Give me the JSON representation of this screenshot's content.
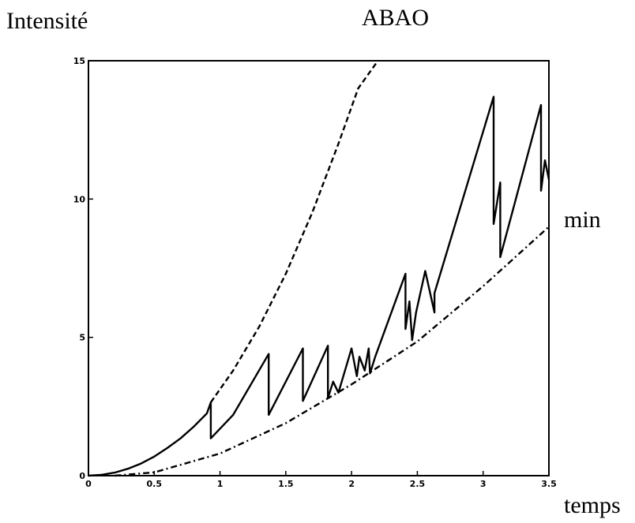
{
  "chart_data": {
    "type": "line",
    "title": "ABAO",
    "xlabel": "temps",
    "ylabel": "Intensité",
    "xlim": [
      0,
      3.5
    ],
    "ylim": [
      0,
      15
    ],
    "xticks": [
      0,
      0.5,
      1,
      1.5,
      2,
      2.5,
      3,
      3.5
    ],
    "xtick_labels": [
      "0",
      "0.5",
      "1",
      "1.5",
      "2",
      "2.5",
      "3",
      "3.5"
    ],
    "yticks": [
      0,
      5,
      10,
      15
    ],
    "ytick_labels": [
      "0",
      "5",
      "10",
      "15"
    ],
    "grid": false,
    "annotations": [
      {
        "text": "min",
        "series": "min"
      }
    ],
    "series": [
      {
        "style": "solid",
        "color": "#000000",
        "x": [
          0,
          0.1,
          0.2,
          0.3,
          0.4,
          0.5,
          0.6,
          0.7,
          0.8,
          0.9,
          0.93,
          0.93,
          1.1,
          1.37,
          1.37,
          1.63,
          1.63,
          1.82,
          1.82,
          1.86,
          1.9,
          2.0,
          2.04,
          2.06,
          2.1,
          2.13,
          2.14,
          2.18,
          2.41,
          2.41,
          2.44,
          2.46,
          2.49,
          2.56,
          2.63,
          2.63,
          3.08,
          3.08,
          3.13,
          3.13,
          3.44,
          3.44,
          3.47,
          3.5
        ],
        "y": [
          0,
          0.03,
          0.11,
          0.25,
          0.44,
          0.69,
          1.0,
          1.35,
          1.77,
          2.25,
          2.65,
          1.35,
          2.2,
          4.4,
          2.2,
          4.6,
          2.7,
          4.7,
          2.8,
          3.4,
          3.0,
          4.6,
          3.6,
          4.3,
          3.8,
          4.6,
          3.7,
          4.3,
          7.3,
          5.3,
          6.3,
          4.9,
          5.9,
          7.4,
          5.9,
          6.6,
          13.7,
          9.1,
          10.6,
          7.9,
          13.4,
          10.3,
          11.4,
          10.7
        ]
      },
      {
        "style": "dashed",
        "color": "#000000",
        "x": [
          0.93,
          1.1,
          1.3,
          1.5,
          1.7,
          1.9,
          2.05,
          2.2
        ],
        "y": [
          2.65,
          3.8,
          5.4,
          7.3,
          9.5,
          12.0,
          14.0,
          15.0
        ]
      },
      {
        "name": "min",
        "style": "dashdot",
        "color": "#000000",
        "x": [
          0.2,
          0.5,
          1.0,
          1.5,
          2.0,
          2.5,
          3.0,
          3.5
        ],
        "y": [
          0,
          0.12,
          0.8,
          1.9,
          3.3,
          4.85,
          6.85,
          9.0
        ]
      }
    ]
  }
}
